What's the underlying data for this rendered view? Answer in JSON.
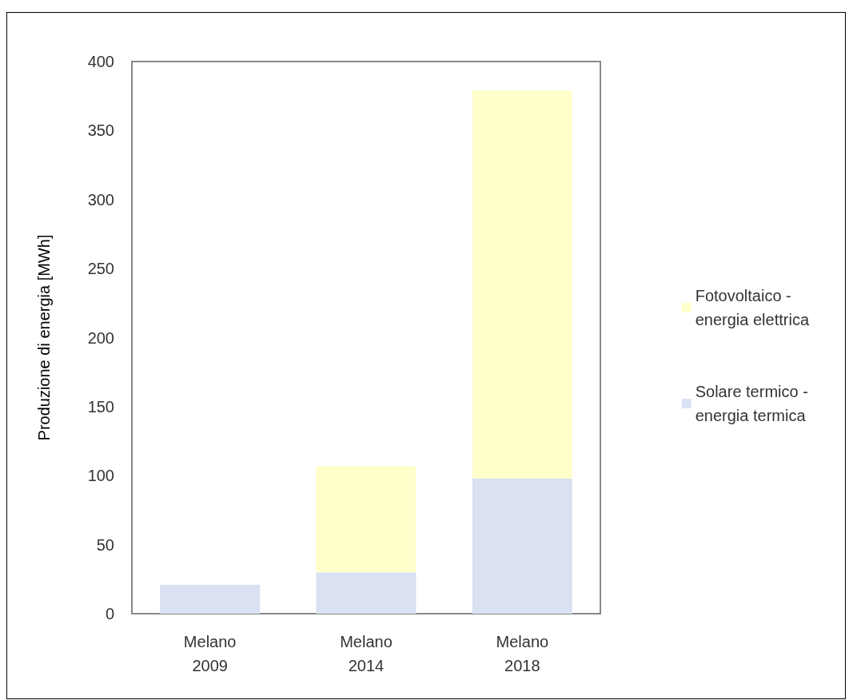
{
  "chart_data": {
    "type": "bar",
    "ylabel": "Produzione di energia [MWh]",
    "categories": [
      "Melano\n2009",
      "Melano\n2014",
      "Melano\n2018"
    ],
    "series": [
      {
        "name": "Solare termico -\nenergia termica",
        "color": "#d9e1f2",
        "values": [
          21,
          30,
          98
        ]
      },
      {
        "name": "Fotovoltaico -\nenergia elettrica",
        "color": "#ffffcc",
        "values": [
          null,
          77,
          281
        ]
      }
    ],
    "stacked": true,
    "ylim": [
      0,
      400
    ],
    "yticks": [
      0,
      50,
      100,
      150,
      200,
      250,
      300,
      350,
      400
    ],
    "grid": false,
    "legend": "right"
  }
}
